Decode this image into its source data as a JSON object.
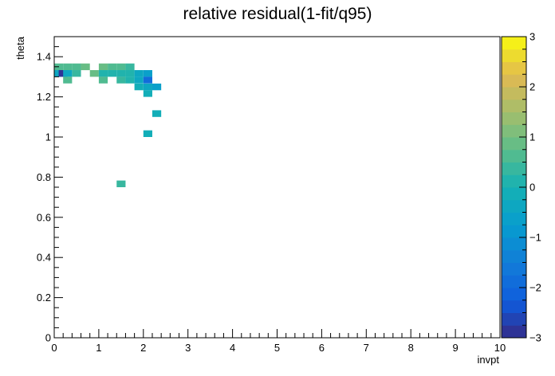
{
  "chart_data": {
    "type": "heatmap",
    "title": "relative residual(1-fit/q95)",
    "xlabel": "invpt",
    "ylabel": "theta",
    "xlim": [
      0,
      10
    ],
    "ylim": [
      0,
      1.5
    ],
    "zlim": [
      -3,
      3
    ],
    "x_ticks": [
      "0",
      "1",
      "2",
      "3",
      "4",
      "5",
      "6",
      "7",
      "8",
      "9",
      "10"
    ],
    "y_ticks": [
      "0",
      "0.2",
      "0.4",
      "0.6",
      "0.8",
      "1",
      "1.2",
      "1.4"
    ],
    "z_ticks": [
      "3",
      "2",
      "1",
      "0",
      "−1",
      "−2",
      "−3"
    ],
    "bin_width_x": 0.2,
    "bin_width_y": 0.0333,
    "cells": [
      {
        "x": 0.0,
        "y": 1.333,
        "z": 0.6
      },
      {
        "x": 0.2,
        "y": 1.333,
        "z": 0.6
      },
      {
        "x": 0.4,
        "y": 1.333,
        "z": 0.6
      },
      {
        "x": 0.6,
        "y": 1.333,
        "z": 0.8
      },
      {
        "x": 1.0,
        "y": 1.333,
        "z": 0.9
      },
      {
        "x": 1.2,
        "y": 1.333,
        "z": 0.7
      },
      {
        "x": 1.4,
        "y": 1.333,
        "z": 0.7
      },
      {
        "x": 1.6,
        "y": 1.333,
        "z": 0.3
      },
      {
        "x": 0.0,
        "y": 1.3,
        "z": -0.3
      },
      {
        "x": 0.1,
        "y": 1.3,
        "z": -2.8
      },
      {
        "x": 0.2,
        "y": 1.3,
        "z": -0.5
      },
      {
        "x": 0.4,
        "y": 1.3,
        "z": 0.4
      },
      {
        "x": 0.8,
        "y": 1.3,
        "z": 0.9
      },
      {
        "x": 1.0,
        "y": 1.3,
        "z": 0.1
      },
      {
        "x": 1.2,
        "y": 1.3,
        "z": 0.2
      },
      {
        "x": 1.4,
        "y": 1.3,
        "z": 0.0
      },
      {
        "x": 1.6,
        "y": 1.3,
        "z": 0.2
      },
      {
        "x": 1.8,
        "y": 1.3,
        "z": -0.4
      },
      {
        "x": 2.0,
        "y": 1.3,
        "z": -0.6
      },
      {
        "x": 0.2,
        "y": 1.267,
        "z": 0.5
      },
      {
        "x": 1.0,
        "y": 1.267,
        "z": 0.7
      },
      {
        "x": 1.4,
        "y": 1.267,
        "z": 0.4
      },
      {
        "x": 1.6,
        "y": 1.267,
        "z": 0.0
      },
      {
        "x": 1.8,
        "y": 1.267,
        "z": -0.3
      },
      {
        "x": 2.0,
        "y": 1.267,
        "z": -2.0
      },
      {
        "x": 1.8,
        "y": 1.233,
        "z": -0.1
      },
      {
        "x": 2.0,
        "y": 1.233,
        "z": -0.3
      },
      {
        "x": 2.2,
        "y": 1.233,
        "z": -0.7
      },
      {
        "x": 2.0,
        "y": 1.2,
        "z": -0.1
      },
      {
        "x": 2.2,
        "y": 1.1,
        "z": -0.2
      },
      {
        "x": 2.0,
        "y": 1.0,
        "z": -0.1
      },
      {
        "x": 1.4,
        "y": 0.75,
        "z": 0.4
      }
    ]
  }
}
